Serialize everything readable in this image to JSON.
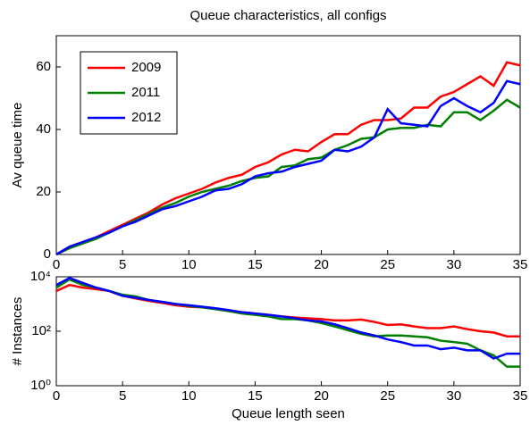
{
  "chart_data": [
    {
      "type": "line",
      "title": "Queue characteristics, all configs",
      "y_label": "Av queue time",
      "x": [
        0,
        1,
        2,
        3,
        4,
        5,
        6,
        7,
        8,
        9,
        10,
        11,
        12,
        13,
        14,
        15,
        16,
        17,
        18,
        19,
        20,
        21,
        22,
        23,
        24,
        25,
        26,
        27,
        28,
        29,
        30,
        31,
        32,
        33,
        34,
        35
      ],
      "series": [
        {
          "name": "2009",
          "color": "#ff0000",
          "values": [
            0,
            2.5,
            4,
            5.5,
            7.5,
            9.5,
            11.5,
            13.5,
            16,
            18,
            19.5,
            21,
            23,
            24.5,
            25.5,
            28,
            29.5,
            32,
            33.5,
            33,
            36,
            38.5,
            38.5,
            41.5,
            43,
            43,
            43.5,
            47,
            47,
            50.5,
            52,
            54.5,
            57,
            54,
            61.5,
            60.5
          ]
        },
        {
          "name": "2011",
          "color": "#008000",
          "values": [
            0,
            2,
            3.5,
            5,
            7,
            9,
            11,
            13,
            15,
            16.5,
            18.5,
            20,
            21,
            22,
            23.5,
            24.5,
            25,
            28,
            28.5,
            30.5,
            31,
            33.5,
            35,
            37,
            37.5,
            40,
            40.5,
            40.5,
            41.5,
            41,
            45.5,
            45.5,
            43,
            46,
            49.5,
            47
          ]
        },
        {
          "name": "2012",
          "color": "#0000ff",
          "values": [
            0,
            2.5,
            4,
            5.5,
            7,
            9,
            10.5,
            12.5,
            14.5,
            15.5,
            17,
            18.5,
            20.5,
            21,
            22.5,
            25,
            26,
            26.5,
            28,
            29,
            30,
            33.5,
            33,
            34.5,
            37.5,
            46.5,
            42,
            41.5,
            41,
            47.5,
            50,
            47.5,
            45.5,
            48.5,
            55.5,
            54.5
          ]
        }
      ],
      "xlim": [
        0,
        35
      ],
      "xticks": [
        0,
        5,
        10,
        15,
        20,
        25,
        30,
        35
      ],
      "ylim": [
        0,
        70
      ],
      "yticks": [
        0,
        20,
        40,
        60
      ],
      "legend": "upper left"
    },
    {
      "type": "line",
      "x_label": "Queue length seen",
      "y_label": "# Instances",
      "log_y": true,
      "x": [
        0,
        1,
        2,
        3,
        4,
        5,
        6,
        7,
        8,
        9,
        10,
        11,
        12,
        13,
        14,
        15,
        16,
        17,
        18,
        19,
        20,
        21,
        22,
        23,
        24,
        25,
        26,
        27,
        28,
        29,
        30,
        31,
        32,
        33,
        34,
        35
      ],
      "series": [
        {
          "color": "#ff0000",
          "values": [
            3000,
            5000,
            4000,
            3500,
            3000,
            2000,
            1600,
            1300,
            1100,
            900,
            800,
            750,
            700,
            550,
            500,
            450,
            400,
            350,
            320,
            300,
            280,
            250,
            250,
            270,
            220,
            170,
            180,
            150,
            130,
            130,
            150,
            120,
            100,
            90,
            65,
            65
          ]
        },
        {
          "color": "#008000",
          "values": [
            4000,
            8000,
            5000,
            4000,
            3000,
            2200,
            1900,
            1400,
            1200,
            1000,
            850,
            750,
            650,
            550,
            450,
            400,
            350,
            280,
            280,
            250,
            200,
            150,
            110,
            80,
            65,
            70,
            70,
            65,
            60,
            45,
            40,
            35,
            20,
            13,
            5,
            5
          ]
        },
        {
          "color": "#0000ff",
          "values": [
            5000,
            9000,
            6000,
            4000,
            3000,
            2000,
            1700,
            1400,
            1200,
            1000,
            900,
            800,
            700,
            600,
            500,
            450,
            400,
            350,
            300,
            250,
            230,
            180,
            130,
            90,
            70,
            50,
            40,
            30,
            30,
            22,
            25,
            20,
            20,
            10,
            15,
            15
          ]
        }
      ],
      "xlim": [
        0,
        35
      ],
      "xticks": [
        0,
        5,
        10,
        15,
        20,
        25,
        30,
        35
      ],
      "ylim": [
        1,
        10000
      ],
      "yticks": [
        {
          "value": 1,
          "label": "10⁰"
        },
        {
          "value": 100,
          "label": "10²"
        },
        {
          "value": 10000,
          "label": "10⁴"
        }
      ]
    }
  ]
}
